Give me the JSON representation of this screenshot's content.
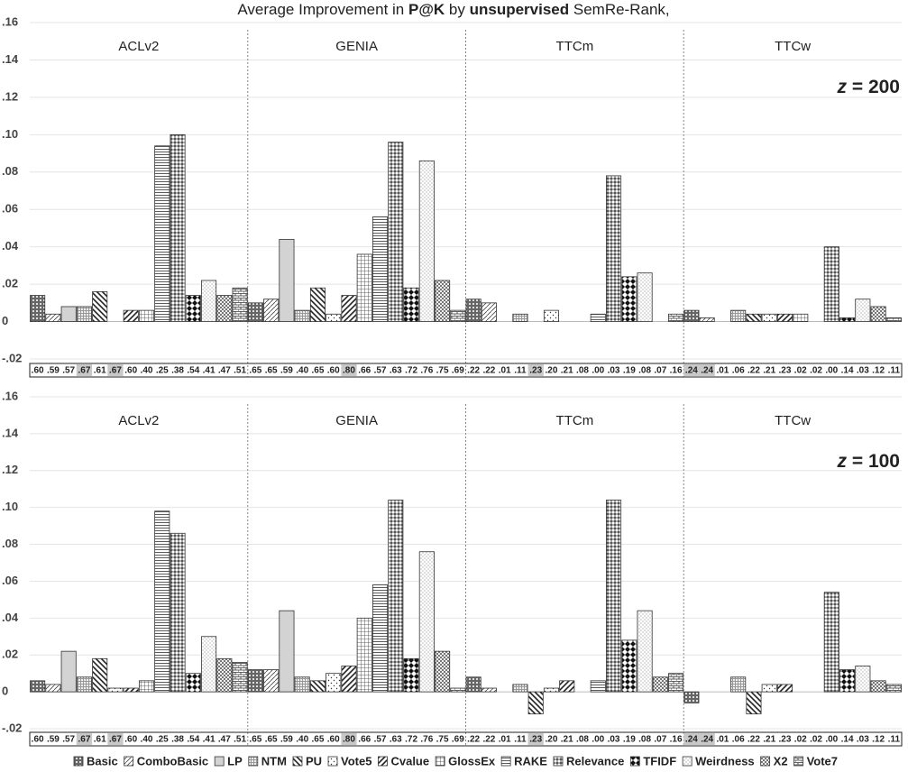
{
  "chart_data": {
    "type": "bar",
    "title": [
      "Average Improvement in ",
      "P@K",
      " by ",
      "unsupervised",
      " SemRe-Rank,"
    ],
    "categories": [
      "ACLv2",
      "GENIA",
      "TTCm",
      "TTCw"
    ],
    "series": [
      {
        "name": "Basic"
      },
      {
        "name": "ComboBasic"
      },
      {
        "name": "LP"
      },
      {
        "name": "NTM"
      },
      {
        "name": "PU"
      },
      {
        "name": "Vote5"
      },
      {
        "name": "Cvalue"
      },
      {
        "name": "GlossEx"
      },
      {
        "name": "RAKE"
      },
      {
        "name": "Relevance"
      },
      {
        "name": "TFIDF"
      },
      {
        "name": "Weirdness"
      },
      {
        "name": "X2"
      },
      {
        "name": "Vote7"
      }
    ],
    "ylim": [
      -0.02,
      0.16
    ],
    "yticks": [
      {
        "value": -0.02,
        "label": "-.02"
      },
      0,
      {
        "value": 0.02,
        "label": ".02"
      },
      {
        "value": 0.04,
        "label": ".04"
      },
      {
        "value": 0.06,
        "label": ".06"
      },
      {
        "value": 0.08,
        "label": ".08"
      },
      {
        "value": 0.1,
        "label": ".10"
      },
      {
        "value": 0.12,
        "label": ".12"
      },
      {
        "value": 0.14,
        "label": ".14"
      },
      {
        "value": 0.16,
        "label": ".16"
      }
    ],
    "grid": true,
    "panels": [
      {
        "label": [
          "z",
          " = 200"
        ],
        "values": [
          [
            0.014,
            0.004,
            0.008,
            0.008,
            0.016,
            0,
            0.006,
            0.006,
            0.094,
            0.1,
            0.014,
            0.022,
            0.014,
            0.018
          ],
          [
            0.01,
            0.012,
            0.044,
            0.006,
            0.018,
            0.004,
            0.014,
            0.036,
            0.056,
            0.096,
            0.018,
            0.086,
            0.022,
            0.006
          ],
          [
            0.012,
            0.01,
            0,
            0.004,
            0,
            0.006,
            0,
            0,
            0.004,
            0.078,
            0.024,
            0.026,
            0,
            0.004
          ],
          [
            0.006,
            0.002,
            0,
            0.006,
            0.004,
            0.004,
            0.004,
            0.004,
            0,
            0.04,
            0.002,
            0.012,
            0.008,
            0.002
          ]
        ]
      },
      {
        "label": [
          "z",
          " = 100"
        ],
        "values": [
          [
            0.006,
            0.004,
            0.022,
            0.008,
            0.018,
            0.002,
            0.002,
            0.006,
            0.098,
            0.086,
            0.01,
            0.03,
            0.018,
            0.016
          ],
          [
            0.012,
            0.012,
            0.044,
            0.008,
            0.006,
            0.01,
            0.014,
            0.04,
            0.058,
            0.104,
            0.018,
            0.076,
            0.022,
            0.002
          ],
          [
            0.008,
            0.002,
            0,
            0.004,
            -0.012,
            0.002,
            0.006,
            0,
            0.006,
            0.104,
            0.028,
            0.044,
            0.008,
            0.01
          ],
          [
            -0.006,
            0,
            0,
            0.008,
            -0.012,
            0.004,
            0.004,
            0,
            0,
            0.054,
            0.012,
            0.014,
            0.006,
            0.004
          ]
        ]
      }
    ],
    "baseline": {
      "values": [
        [
          0.6,
          0.59,
          0.57,
          0.67,
          0.61,
          0.67,
          0.6,
          0.4,
          0.25,
          0.38,
          0.54,
          0.41,
          0.47,
          0.51
        ],
        [
          0.65,
          0.65,
          0.59,
          0.4,
          0.65,
          0.6,
          0.8,
          0.66,
          0.57,
          0.63,
          0.72,
          0.76,
          0.75,
          0.69
        ],
        [
          0.22,
          0.22,
          0.01,
          0.11,
          0.23,
          0.2,
          0.21,
          0.08,
          0,
          0.03,
          0.19,
          0.08,
          0.07,
          0.16
        ],
        [
          0.24,
          0.24,
          0.01,
          0.06,
          0.22,
          0.21,
          0.23,
          0.02,
          0.02,
          0,
          0.14,
          0.03,
          0.12,
          0.11
        ]
      ],
      "value_labels": [
        [
          ".60",
          ".59",
          ".57",
          ".67",
          ".61",
          ".67",
          ".60",
          ".40",
          ".25",
          ".38",
          ".54",
          ".41",
          ".47",
          ".51"
        ],
        [
          ".65",
          ".65",
          ".59",
          ".40",
          ".65",
          ".60",
          ".80",
          ".66",
          ".57",
          ".63",
          ".72",
          ".76",
          ".75",
          ".69"
        ],
        [
          ".22",
          ".22",
          ".01",
          ".11",
          ".23",
          ".20",
          ".21",
          ".08",
          ".00",
          ".03",
          ".19",
          ".08",
          ".07",
          ".16"
        ],
        [
          ".24",
          ".24",
          ".01",
          ".06",
          ".22",
          ".21",
          ".23",
          ".02",
          ".02",
          ".00",
          ".14",
          ".03",
          ".12",
          ".11"
        ]
      ],
      "highlight": [
        [
          3,
          5
        ],
        [
          6
        ],
        [
          4
        ],
        [
          0,
          1
        ]
      ]
    }
  }
}
